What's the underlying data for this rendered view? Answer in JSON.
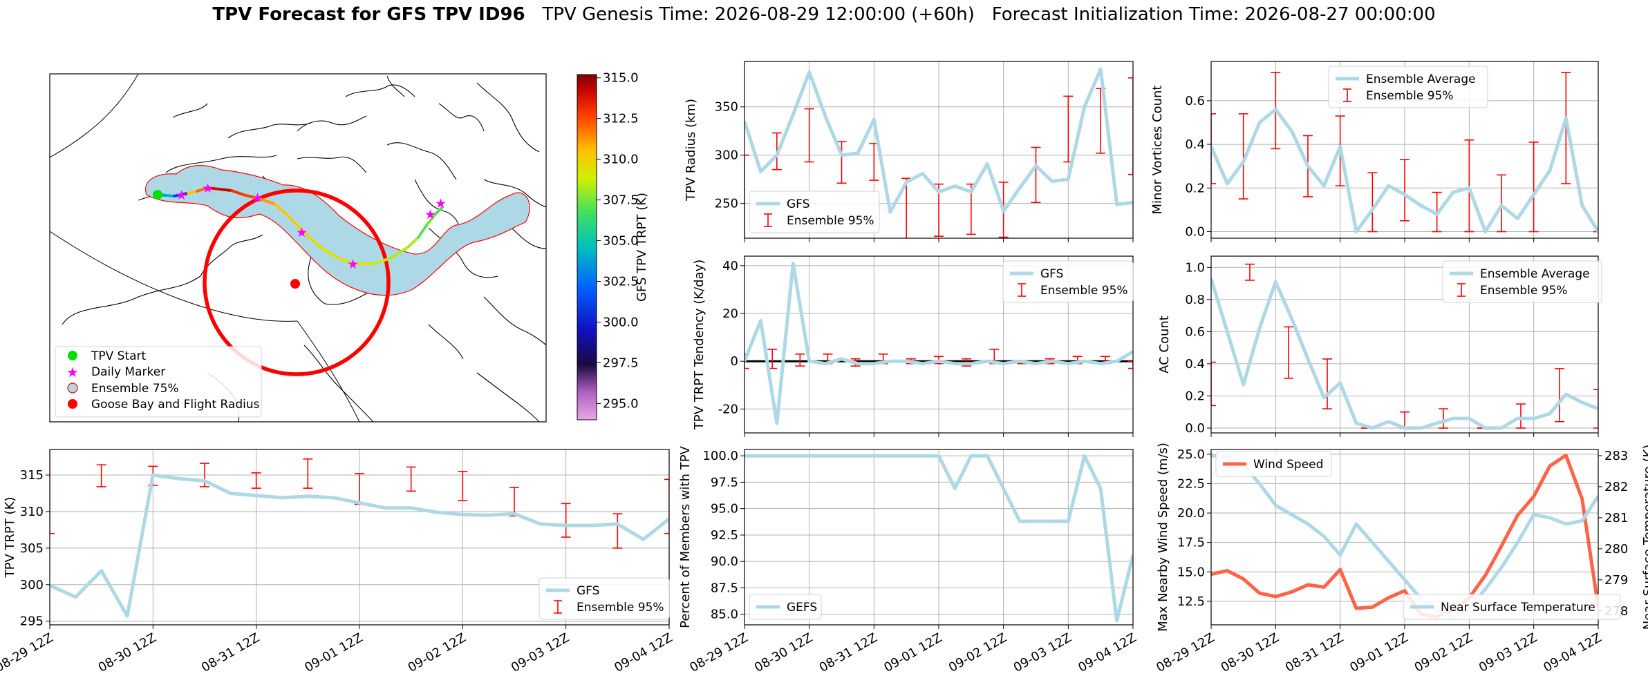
{
  "figure": {
    "title_bold": "TPV Forecast for GFS TPV ID96",
    "title_genesis": "TPV Genesis Time: 2026-08-29 12:00:00 (+60h)",
    "title_init": "Forecast Initialization Time: 2026-08-27 00:00:00",
    "colors": {
      "gfs": "#add8e6",
      "ensemble": "#ff0000",
      "wind": "#ff6347",
      "temp_label": "#4169e1"
    }
  },
  "time_ticks": [
    "08-29 12Z",
    "08-30 12Z",
    "08-31 12Z",
    "09-01 12Z",
    "09-02 12Z",
    "09-03 12Z",
    "09-04 12Z"
  ],
  "chart_data": [
    {
      "id": "map",
      "type": "map",
      "legend": [
        "TPV Start",
        "Daily Marker",
        "Ensemble 75%",
        "Goose Bay and Flight Radius"
      ],
      "colorbar": {
        "label": "GFS TPV TRPT (K)",
        "ticks": [
          315.0,
          312.5,
          310.0,
          307.5,
          305.0,
          302.5,
          300.0,
          297.5,
          295.0
        ],
        "range": [
          294,
          315.2
        ]
      },
      "track_trpt": [
        303.4,
        304.2,
        301.0,
        299.0,
        310.3,
        312.0,
        313.8,
        314.3,
        313.0,
        312.6,
        311.5,
        311.2,
        310.4,
        310.2,
        309.9,
        309.6,
        309.3,
        309.5,
        309.2,
        308.6,
        308.3,
        308.3,
        307.1,
        307.5,
        306.9,
        307.3
      ]
    },
    {
      "id": "trpt",
      "type": "line",
      "xlabel": "",
      "ylabel": "TPV TRPT (K)",
      "yticks": [
        295,
        300,
        305,
        310,
        315
      ],
      "ylim": [
        294.5,
        318.5
      ],
      "legend": [
        "GFS",
        "Ensemble 95%"
      ],
      "legend_loc": "lower-right",
      "series": [
        {
          "name": "GFS",
          "values": [
            299.9,
            298.3,
            301.9,
            295.7,
            315.0,
            314.5,
            314.2,
            312.5,
            312.2,
            311.9,
            312.1,
            311.9,
            311.2,
            310.5,
            310.5,
            309.9,
            309.6,
            309.5,
            309.7,
            308.3,
            308.1,
            308.1,
            308.3,
            306.2,
            309.0
          ]
        }
      ],
      "ensemble_95": [
        [
          307.0,
          319.0
        ],
        [
          313.4,
          316.4
        ],
        [
          313.6,
          316.2
        ],
        [
          313.4,
          316.6
        ],
        [
          313.2,
          315.3
        ],
        [
          313.2,
          317.2
        ],
        [
          311.0,
          315.2
        ],
        [
          312.8,
          316.1
        ],
        [
          311.5,
          315.5
        ],
        [
          309.4,
          313.3
        ],
        [
          306.5,
          311.1
        ],
        [
          305.0,
          309.7
        ],
        [
          307.0,
          314.4
        ]
      ]
    },
    {
      "id": "radius",
      "type": "line",
      "ylabel": "TPV Radius (km)",
      "yticks": [
        250,
        300,
        350
      ],
      "ylim": [
        214,
        397
      ],
      "legend": [
        "GFS",
        "Ensemble 95%"
      ],
      "legend_loc": "lower-left",
      "series": [
        {
          "name": "GFS",
          "values": [
            335,
            283,
            300,
            342,
            386,
            340,
            300,
            302,
            337,
            241,
            272,
            281,
            262,
            268,
            262,
            291,
            242,
            266,
            289,
            273,
            275,
            350,
            389,
            249,
            251
          ]
        }
      ],
      "ensemble_95": [
        [
          200,
          300
        ],
        [
          285,
          323
        ],
        [
          293,
          348
        ],
        [
          271,
          314
        ],
        [
          274,
          312
        ],
        [
          212,
          276
        ],
        [
          216,
          270
        ],
        [
          218,
          270
        ],
        [
          215,
          272
        ],
        [
          251,
          308
        ],
        [
          293,
          361
        ],
        [
          302,
          369
        ],
        [
          280,
          380
        ]
      ]
    },
    {
      "id": "minor",
      "type": "line",
      "ylabel": "Minor Vortices Count",
      "yticks": [
        0.0,
        0.2,
        0.4,
        0.6
      ],
      "ylim": [
        -0.03,
        0.78
      ],
      "legend": [
        "Ensemble Average",
        "Ensemble 95%"
      ],
      "legend_loc": "upper-center",
      "series": [
        {
          "name": "Ensemble Average",
          "values": [
            0.39,
            0.22,
            0.32,
            0.5,
            0.56,
            0.46,
            0.3,
            0.21,
            0.39,
            0.0,
            0.1,
            0.21,
            0.17,
            0.12,
            0.08,
            0.18,
            0.2,
            0.0,
            0.12,
            0.06,
            0.17,
            0.28,
            0.52,
            0.12,
            0.0
          ]
        }
      ],
      "ensemble_95": [
        [
          0.22,
          0.54
        ],
        [
          0.15,
          0.54
        ],
        [
          0.38,
          0.73
        ],
        [
          0.16,
          0.44
        ],
        [
          0.21,
          0.53
        ],
        [
          0.0,
          0.27
        ],
        [
          0.05,
          0.33
        ],
        [
          0.0,
          0.18
        ],
        [
          0.0,
          0.42
        ],
        [
          0.0,
          0.26
        ],
        [
          0.0,
          0.41
        ],
        [
          0.22,
          0.73
        ],
        [
          0.0,
          0.0
        ]
      ]
    },
    {
      "id": "tendency",
      "type": "line",
      "ylabel": "TPV TRPT Tendency (K/day)",
      "yticks": [
        -20,
        0,
        20,
        40
      ],
      "ylim": [
        -30,
        44
      ],
      "legend": [
        "GFS",
        "Ensemble 95%"
      ],
      "legend_loc": "upper-right",
      "series": [
        {
          "name": "GFS",
          "values": [
            0.0,
            17.0,
            -26.0,
            41.0,
            0.0,
            -1.0,
            1.0,
            -1.0,
            -1.0,
            0.0,
            0.0,
            -1.0,
            0.0,
            -1.0,
            -1.0,
            0.0,
            -1.0,
            0.0,
            -1.0,
            0.0,
            -1.0,
            0.0,
            -1.0,
            0.0,
            4.0
          ]
        }
      ],
      "ensemble_95": [
        [
          -3,
          3
        ],
        [
          -3,
          5
        ],
        [
          -2,
          3
        ],
        [
          -1,
          3
        ],
        [
          -2,
          1
        ],
        [
          -1,
          3
        ],
        [
          -1,
          1
        ],
        [
          -1,
          2
        ],
        [
          -2,
          1
        ],
        [
          -1,
          5
        ],
        [
          -1,
          0
        ],
        [
          -1,
          1
        ],
        [
          -1,
          2
        ],
        [
          -1,
          2
        ],
        [
          -3,
          0
        ]
      ]
    },
    {
      "id": "ac",
      "type": "line",
      "ylabel": "AC Count",
      "yticks": [
        0.0,
        0.2,
        0.4,
        0.6,
        0.8,
        1.0
      ],
      "ylim": [
        -0.03,
        1.07
      ],
      "legend": [
        "Ensemble Average",
        "Ensemble 95%"
      ],
      "legend_loc": "upper-right",
      "series": [
        {
          "name": "Ensemble Average",
          "values": [
            0.93,
            0.6,
            0.27,
            0.62,
            0.91,
            0.68,
            0.43,
            0.19,
            0.28,
            0.03,
            0.0,
            0.04,
            0.0,
            0.0,
            0.03,
            0.06,
            0.06,
            0.0,
            0.0,
            0.06,
            0.06,
            0.09,
            0.21,
            0.16,
            0.12
          ]
        }
      ],
      "ensemble_95": [
        [
          0.14,
          0.41
        ],
        [
          0.92,
          1.02
        ],
        [
          0.31,
          0.63
        ],
        [
          0.12,
          0.43
        ],
        [
          0.0,
          0.0
        ],
        [
          0.0,
          0.1
        ],
        [
          0.0,
          0.12
        ],
        [
          0.0,
          0.0
        ],
        [
          0.0,
          0.15
        ],
        [
          0.04,
          0.37
        ],
        [
          0.0,
          0.24
        ]
      ]
    },
    {
      "id": "percent",
      "type": "line",
      "ylabel": "Percent of Members with TPV",
      "yticks": [
        85.0,
        87.5,
        90.0,
        92.5,
        95.0,
        97.5,
        100.0
      ],
      "ylim": [
        84.0,
        100.6
      ],
      "legend": [
        "GEFS"
      ],
      "legend_loc": "lower-left",
      "series": [
        {
          "name": "GEFS",
          "values": [
            100,
            100,
            100,
            100,
            100,
            100,
            100,
            100,
            100,
            100,
            100,
            100,
            100,
            96.9,
            100,
            100,
            96.9,
            93.8,
            93.8,
            93.8,
            93.8,
            100,
            96.9,
            84.4,
            90.6
          ]
        }
      ]
    },
    {
      "id": "wind_temp",
      "type": "line",
      "ylabel": "Max Nearby Wind Speed (m/s)",
      "ylabel_right": "Near Surface Temperature (K)",
      "yticks": [
        12.5,
        15.0,
        17.5,
        20.0,
        22.5,
        25.0
      ],
      "ylim": [
        10.5,
        25.4
      ],
      "yticks_right": [
        278,
        279,
        280,
        281,
        282,
        283
      ],
      "ylim_right": [
        277.55,
        283.2
      ],
      "legend": [
        "Wind Speed"
      ],
      "legend_right": [
        "Near Surface Temperature"
      ],
      "series": [
        {
          "name": "Wind Speed",
          "values": [
            14.8,
            15.1,
            14.4,
            13.2,
            12.9,
            13.3,
            13.9,
            13.7,
            15.2,
            11.9,
            12.0,
            12.8,
            13.4,
            11.4,
            11.2,
            11.8,
            12.8,
            14.7,
            17.2,
            19.8,
            21.4,
            24.0,
            24.9,
            21.2,
            12.0
          ]
        },
        {
          "name": "Near Surface Temperature",
          "values": [
            283.0,
            283.0,
            282.7,
            282.1,
            281.4,
            281.1,
            280.8,
            280.4,
            279.8,
            280.8,
            280.2,
            279.6,
            279.0,
            278.4,
            278.0,
            277.8,
            278.1,
            278.7,
            279.4,
            280.2,
            281.1,
            281.0,
            280.8,
            280.9,
            281.7
          ]
        }
      ]
    }
  ]
}
